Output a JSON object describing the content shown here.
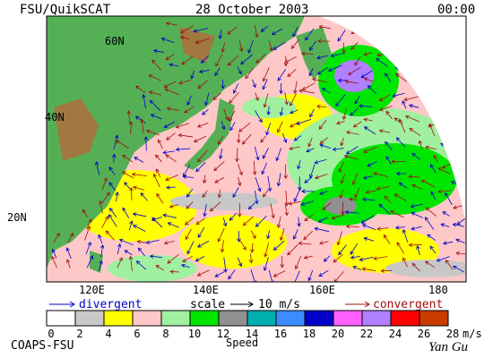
{
  "header": {
    "title": "FSU/QuikSCAT",
    "date": "28 October 2003",
    "time": "00:00"
  },
  "map": {
    "lat_labels": [
      "60N",
      "40N",
      "20N"
    ],
    "lon_labels": [
      "120E",
      "140E",
      "160E",
      "180"
    ]
  },
  "legend": {
    "divergent": "divergent",
    "scale": "scale",
    "scale_value": "10 m/s",
    "convergent": "convergent"
  },
  "colorbar": {
    "ticks": [
      "0",
      "2",
      "4",
      "6",
      "8",
      "10",
      "12",
      "14",
      "16",
      "18",
      "20",
      "22",
      "24",
      "26",
      "28"
    ],
    "unit": "m/s",
    "label": "Speed",
    "colors": [
      "#ffffff",
      "#c8c8c8",
      "#ffff00",
      "#ffc8c8",
      "#a0f0a0",
      "#00e600",
      "#909090",
      "#00b0b0",
      "#3c8cff",
      "#0000c8",
      "#ff60ff",
      "#b080ff",
      "#ff0000",
      "#c83c00",
      "#000000"
    ]
  },
  "footer": {
    "credit": "COAPS-FSU",
    "signature": "Yan Gu"
  }
}
